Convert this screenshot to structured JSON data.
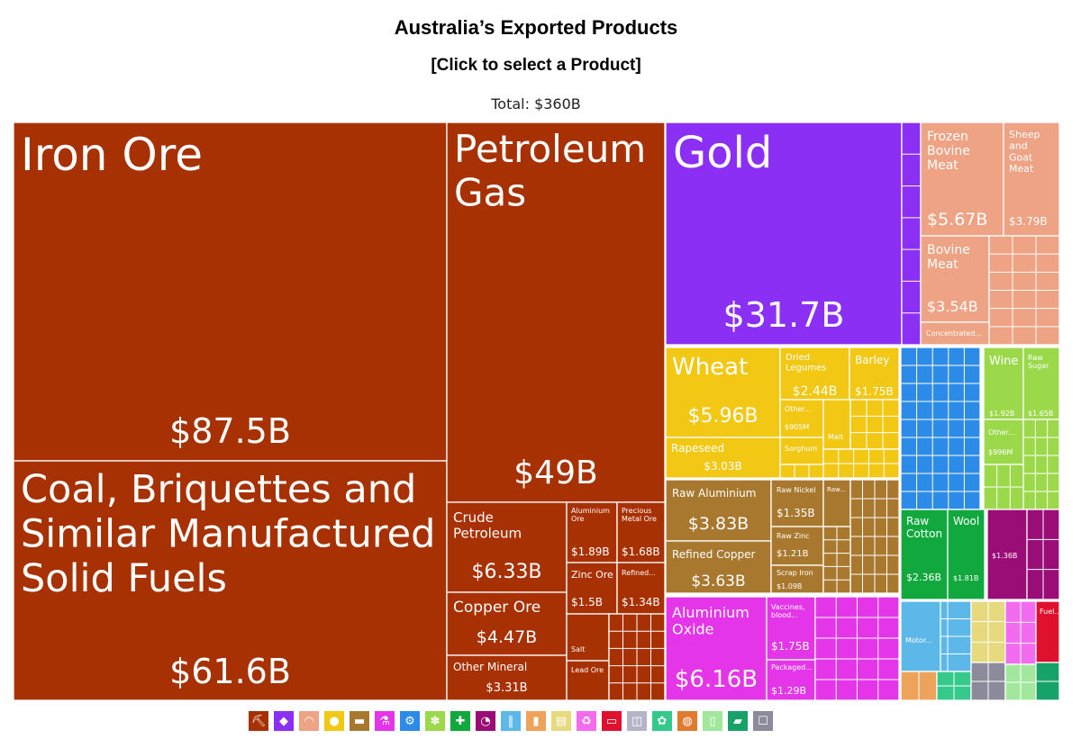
{
  "header": {
    "title": "Australia’s Exported Products",
    "subtitle": "[Click to select a Product]",
    "total": "Total: $360B"
  },
  "chart_data": {
    "type": "treemap",
    "total": "$360B",
    "colors": {
      "minerals": "#a73102",
      "metals_precious": "#8b2ff5",
      "animal": "#eda384",
      "vegetable": "#f2c814",
      "metals": "#a8782f",
      "chemicals": "#e436e8",
      "machinery": "#2c8be8",
      "foodstuffs": "#9bd84a",
      "textiles": "#11a93d",
      "plastics": "#9a0d77",
      "transport": "#5bb8e8",
      "other": "#b5b5c9"
    },
    "items": [
      {
        "name": "Iron Ore",
        "value_label": "$87.5B",
        "value": 87.5,
        "group": "minerals"
      },
      {
        "name": "Coal, Briquettes and Similar Manufactured Solid Fuels",
        "value_label": "$61.6B",
        "value": 61.6,
        "group": "minerals"
      },
      {
        "name": "Petroleum Gas",
        "value_label": "$49B",
        "value": 49,
        "group": "minerals"
      },
      {
        "name": "Crude Petroleum",
        "value_label": "$6.33B",
        "value": 6.33,
        "group": "minerals"
      },
      {
        "name": "Copper Ore",
        "value_label": "$4.47B",
        "value": 4.47,
        "group": "minerals"
      },
      {
        "name": "Other Mineral",
        "value_label": "$3.31B",
        "value": 3.31,
        "group": "minerals"
      },
      {
        "name": "Aluminium Ore",
        "value_label": "$1.89B",
        "value": 1.89,
        "group": "minerals"
      },
      {
        "name": "Precious Metal Ore",
        "value_label": "$1.68B",
        "value": 1.68,
        "group": "minerals"
      },
      {
        "name": "Zinc Ore",
        "value_label": "$1.5B",
        "value": 1.5,
        "group": "minerals"
      },
      {
        "name": "Refined...",
        "value_label": "$1.34B",
        "value": 1.34,
        "group": "minerals"
      },
      {
        "name": "Salt",
        "value_label": "",
        "group": "minerals"
      },
      {
        "name": "Lead Ore",
        "value_label": "",
        "group": "minerals"
      },
      {
        "name": "Gold",
        "value_label": "$31.7B",
        "value": 31.7,
        "group": "metals_precious"
      },
      {
        "name": "Frozen Bovine Meat",
        "value_label": "$5.67B",
        "value": 5.67,
        "group": "animal"
      },
      {
        "name": "Sheep and Goat Meat",
        "value_label": "$3.79B",
        "value": 3.79,
        "group": "animal"
      },
      {
        "name": "Bovine Meat",
        "value_label": "$3.54B",
        "value": 3.54,
        "group": "animal"
      },
      {
        "name": "Concentrated...",
        "value_label": "",
        "group": "animal"
      },
      {
        "name": "Wheat",
        "value_label": "$5.96B",
        "value": 5.96,
        "group": "vegetable"
      },
      {
        "name": "Dried Legumes",
        "value_label": "$2.44B",
        "value": 2.44,
        "group": "vegetable"
      },
      {
        "name": "Barley",
        "value_label": "$1.75B",
        "value": 1.75,
        "group": "vegetable"
      },
      {
        "name": "Other...",
        "value_label": "$905M",
        "value": 0.905,
        "group": "vegetable"
      },
      {
        "name": "Malt",
        "value_label": "",
        "group": "vegetable"
      },
      {
        "name": "Sorghum",
        "value_label": "",
        "group": "vegetable"
      },
      {
        "name": "Rapeseed",
        "value_label": "$3.03B",
        "value": 3.03,
        "group": "vegetable"
      },
      {
        "name": "Raw Aluminium",
        "value_label": "$3.83B",
        "value": 3.83,
        "group": "metals"
      },
      {
        "name": "Refined Copper",
        "value_label": "$3.63B",
        "value": 3.63,
        "group": "metals"
      },
      {
        "name": "Raw Nickel",
        "value_label": "$1.35B",
        "value": 1.35,
        "group": "metals"
      },
      {
        "name": "Raw...",
        "value_label": "",
        "group": "metals"
      },
      {
        "name": "Raw Zinc",
        "value_label": "$1.21B",
        "value": 1.21,
        "group": "metals"
      },
      {
        "name": "Scrap Iron",
        "value_label": "$1.09B",
        "value": 1.09,
        "group": "metals"
      },
      {
        "name": "Aluminium Oxide",
        "value_label": "$6.16B",
        "value": 6.16,
        "group": "chemicals"
      },
      {
        "name": "Vaccines, blood...",
        "value_label": "$1.75B",
        "value": 1.75,
        "group": "chemicals"
      },
      {
        "name": "Packaged...",
        "value_label": "$1.29B",
        "value": 1.29,
        "group": "chemicals"
      },
      {
        "name": "Wine",
        "value_label": "$1.92B",
        "value": 1.92,
        "group": "foodstuffs"
      },
      {
        "name": "Raw Sugar",
        "value_label": "$1.65B",
        "value": 1.65,
        "group": "foodstuffs"
      },
      {
        "name": "Other...",
        "value_label": "$996M",
        "value": 0.996,
        "group": "foodstuffs"
      },
      {
        "name": "Raw Cotton",
        "value_label": "$2.36B",
        "value": 2.36,
        "group": "textiles"
      },
      {
        "name": "Wool",
        "value_label": "$1.81B",
        "value": 1.81,
        "group": "textiles"
      },
      {
        "name": "",
        "value_label": "$1.36B",
        "value": 1.36,
        "group": "plastics"
      },
      {
        "name": "Motor...",
        "value_label": "",
        "group": "transport"
      },
      {
        "name": "Fuel...",
        "value_label": "",
        "group": "other"
      }
    ],
    "legend_icons": [
      {
        "icon": "pickaxe-icon",
        "glyph": "⛏",
        "color": "#a73102"
      },
      {
        "icon": "diamond-icon",
        "glyph": "◆",
        "color": "#8b2ff5"
      },
      {
        "icon": "cow-icon",
        "glyph": "◠",
        "color": "#eda384"
      },
      {
        "icon": "fruit-icon",
        "glyph": "●",
        "color": "#f2c814"
      },
      {
        "icon": "anvil-icon",
        "glyph": "▬",
        "color": "#a8782f"
      },
      {
        "icon": "flask-icon",
        "glyph": "⚗",
        "color": "#e436e8"
      },
      {
        "icon": "gear-icon",
        "glyph": "⚙",
        "color": "#2c8be8"
      },
      {
        "icon": "wheat-icon",
        "glyph": "✽",
        "color": "#9bd84a"
      },
      {
        "icon": "shirt-icon",
        "glyph": "✚",
        "color": "#11a93d"
      },
      {
        "icon": "gauge-icon",
        "glyph": "◔",
        "color": "#9a0d77"
      },
      {
        "icon": "road-icon",
        "glyph": "‖",
        "color": "#5bb8e8"
      },
      {
        "icon": "bottle-icon",
        "glyph": "▮",
        "color": "#eda35a"
      },
      {
        "icon": "paper-icon",
        "glyph": "▤",
        "color": "#e7d97e"
      },
      {
        "icon": "recycle-icon",
        "glyph": "♻",
        "color": "#f36cf0"
      },
      {
        "icon": "ticket-icon",
        "glyph": "▭",
        "color": "#e0102f"
      },
      {
        "icon": "box-icon",
        "glyph": "◫",
        "color": "#b5b5c9"
      },
      {
        "icon": "leather-icon",
        "glyph": "✿",
        "color": "#35c98c"
      },
      {
        "icon": "stone-icon",
        "glyph": "◍",
        "color": "#e07a2f"
      },
      {
        "icon": "glass-icon",
        "glyph": "▯",
        "color": "#a1e89d"
      },
      {
        "icon": "shoe-icon",
        "glyph": "▰",
        "color": "#17a26a"
      },
      {
        "icon": "easel-icon",
        "glyph": "☐",
        "color": "#8b8b9b"
      }
    ]
  }
}
